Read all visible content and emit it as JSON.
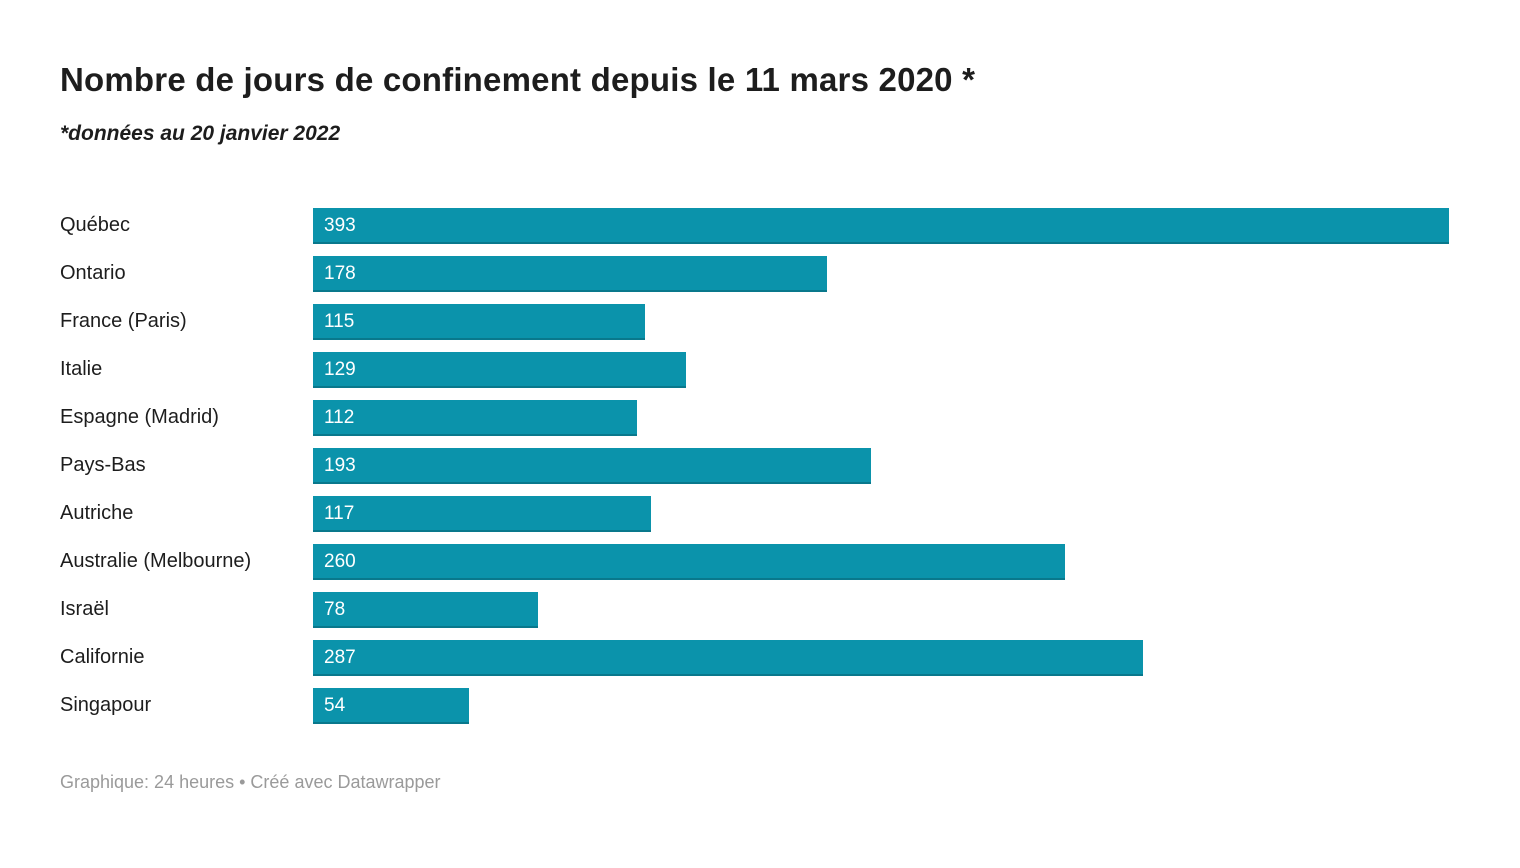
{
  "header": {
    "title": "Nombre de jours de confinement depuis le 11 mars 2020 *",
    "subtitle": "*données au 20 janvier 2022"
  },
  "footer": {
    "credit": "Graphique: 24 heures • Créé avec Datawrapper"
  },
  "colors": {
    "bar": "#0b93ab",
    "bar_bottom_edge": "rgba(0,0,0,0.18)",
    "title_text": "#1d1d1d",
    "label_text": "#1d1d1d",
    "value_text": "#ffffff",
    "footer_text": "#9a9a9a",
    "background": "#ffffff"
  },
  "chart_data": {
    "type": "bar",
    "orientation": "horizontal",
    "title": "Nombre de jours de confinement depuis le 11 mars 2020 *",
    "subtitle": "*données au 20 janvier 2022",
    "categories": [
      "Québec",
      "Ontario",
      "France (Paris)",
      "Italie",
      "Espagne (Madrid)",
      "Pays-Bas",
      "Autriche",
      "Australie (Melbourne)",
      "Israël",
      "Californie",
      "Singapour"
    ],
    "values": [
      393,
      178,
      115,
      129,
      112,
      193,
      117,
      260,
      78,
      287,
      54
    ],
    "xlabel": "",
    "ylabel": "",
    "xlim": [
      0,
      393
    ],
    "grid": false,
    "legend": false,
    "value_labels": "inside-left"
  }
}
